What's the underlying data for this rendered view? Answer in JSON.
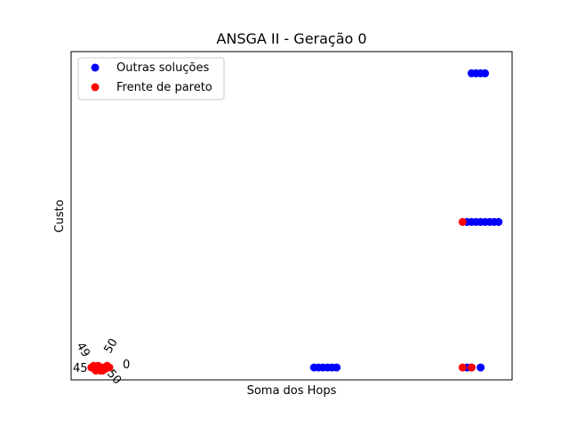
{
  "chart_data": {
    "type": "scatter",
    "title": "ANSGA II - Geração 0",
    "xlabel": "Soma dos Hops",
    "ylabel": "Custo",
    "xlim": [
      -1,
      97
    ],
    "ylim": [
      -1,
      105
    ],
    "grid": false,
    "legend_position": "top-left",
    "series": [
      {
        "name": "Outras soluções",
        "color": "#0000ff",
        "points": [
          [
            53,
            3
          ],
          [
            54,
            3
          ],
          [
            55,
            3
          ],
          [
            56,
            3
          ],
          [
            57,
            3
          ],
          [
            58,
            3
          ],
          [
            87,
            3
          ],
          [
            88,
            3
          ],
          [
            90,
            3
          ],
          [
            87,
            50
          ],
          [
            88,
            50
          ],
          [
            89,
            50
          ],
          [
            90,
            50
          ],
          [
            91,
            50
          ],
          [
            92,
            50
          ],
          [
            93,
            50
          ],
          [
            94,
            50
          ],
          [
            88,
            98
          ],
          [
            89,
            98
          ],
          [
            90,
            98
          ],
          [
            91,
            98
          ]
        ]
      },
      {
        "name": "Frente de pareto",
        "color": "#ff0000",
        "points": [
          [
            4,
            3
          ],
          [
            5,
            2.5
          ],
          [
            6,
            3
          ],
          [
            7,
            3.5
          ],
          [
            4.5,
            2
          ],
          [
            5.5,
            2
          ],
          [
            6.5,
            2.5
          ],
          [
            7.5,
            3
          ],
          [
            5,
            3.5
          ],
          [
            6,
            2
          ],
          [
            3.5,
            3
          ],
          [
            4,
            3.5
          ],
          [
            86,
            3
          ],
          [
            88,
            3
          ],
          [
            86,
            50
          ]
        ]
      }
    ],
    "annotations": [
      "49",
      "50",
      "45",
      "50",
      "0"
    ]
  }
}
